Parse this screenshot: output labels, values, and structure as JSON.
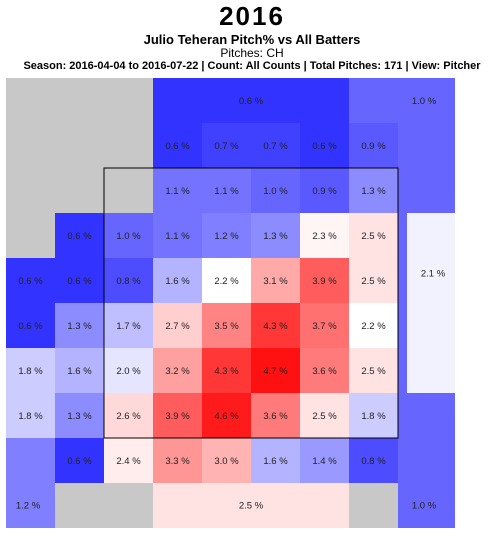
{
  "header": {
    "year": "2016",
    "title": "Julio Teheran Pitch% vs All Batters",
    "subtitle": "Pitches: CH",
    "info": "Season: 2016-04-04 to 2016-07-22 | Count: All Counts | Total Pitches: 171 | View: Pitcher"
  },
  "chart_data": {
    "type": "heatmap",
    "title": "Julio Teheran Pitch% vs All Batters",
    "subtitle": "Pitches: CH",
    "value_unit": "%",
    "colors": {
      "low": "#3333ff",
      "mid": "#ffffff",
      "high": "#ff1111",
      "no_data": "#c8c8c8"
    },
    "color_scale": {
      "min": 0.6,
      "mid": 2.2,
      "max": 4.7
    },
    "outer_zones": [
      {
        "zone": "top",
        "value": 0.6,
        "label": "0.6 %"
      },
      {
        "zone": "top-right",
        "value": 1.0,
        "label": "1.0 %"
      },
      {
        "zone": "right",
        "value": 2.1,
        "label": "2.1 %"
      },
      {
        "zone": "bottom-right",
        "value": 1.0,
        "label": "1.0 %"
      },
      {
        "zone": "bottom",
        "value": 2.5,
        "label": "2.5 %"
      },
      {
        "zone": "bottom-left",
        "value": 1.2,
        "label": "1.2 %"
      }
    ],
    "grid": [
      [
        null,
        null,
        null,
        0.6,
        0.7,
        0.7,
        0.6,
        0.9,
        null
      ],
      [
        null,
        null,
        null,
        1.1,
        1.1,
        1.0,
        0.9,
        1.3,
        null
      ],
      [
        null,
        0.6,
        1.0,
        1.1,
        1.2,
        1.3,
        2.3,
        2.5,
        null
      ],
      [
        0.6,
        0.6,
        0.8,
        1.6,
        2.2,
        3.1,
        3.9,
        2.5,
        null
      ],
      [
        0.6,
        1.3,
        1.7,
        2.7,
        3.5,
        4.3,
        3.7,
        2.2,
        null
      ],
      [
        1.8,
        1.6,
        2.0,
        3.2,
        4.3,
        4.7,
        3.6,
        2.5,
        null
      ],
      [
        1.8,
        1.3,
        2.6,
        3.9,
        4.6,
        3.6,
        2.5,
        1.8,
        null
      ],
      [
        null,
        0.6,
        2.4,
        3.3,
        3.0,
        1.6,
        1.4,
        0.8,
        null
      ]
    ]
  }
}
